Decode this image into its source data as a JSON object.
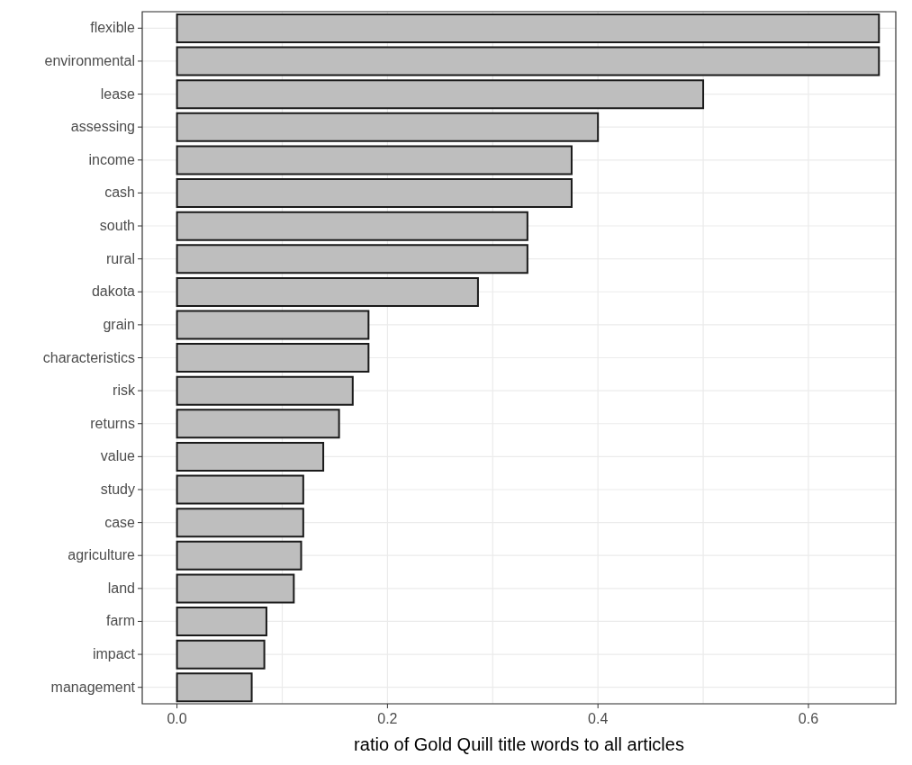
{
  "chart_data": {
    "type": "bar",
    "orientation": "horizontal",
    "xlabel": "ratio of Gold Quill title words to all articles",
    "categories": [
      "flexible",
      "environmental",
      "lease",
      "assessing",
      "income",
      "cash",
      "south",
      "rural",
      "dakota",
      "grain",
      "characteristics",
      "risk",
      "returns",
      "value",
      "study",
      "case",
      "agriculture",
      "land",
      "farm",
      "impact",
      "management"
    ],
    "values": [
      0.667,
      0.667,
      0.5,
      0.4,
      0.375,
      0.375,
      0.333,
      0.333,
      0.286,
      0.182,
      0.182,
      0.167,
      0.154,
      0.139,
      0.12,
      0.12,
      0.118,
      0.111,
      0.085,
      0.083,
      0.071
    ],
    "color": "#bebebe",
    "xlim": [
      -0.033,
      0.683
    ],
    "xticks": [
      {
        "value": 0,
        "label": "0.0"
      },
      {
        "value": 0.1,
        "label": null
      },
      {
        "value": 0.2,
        "label": "0.2"
      },
      {
        "value": 0.3,
        "label": null
      },
      {
        "value": 0.4,
        "label": "0.4"
      },
      {
        "value": 0.5,
        "label": null
      },
      {
        "value": 0.6,
        "label": "0.6"
      }
    ],
    "grid": true
  }
}
